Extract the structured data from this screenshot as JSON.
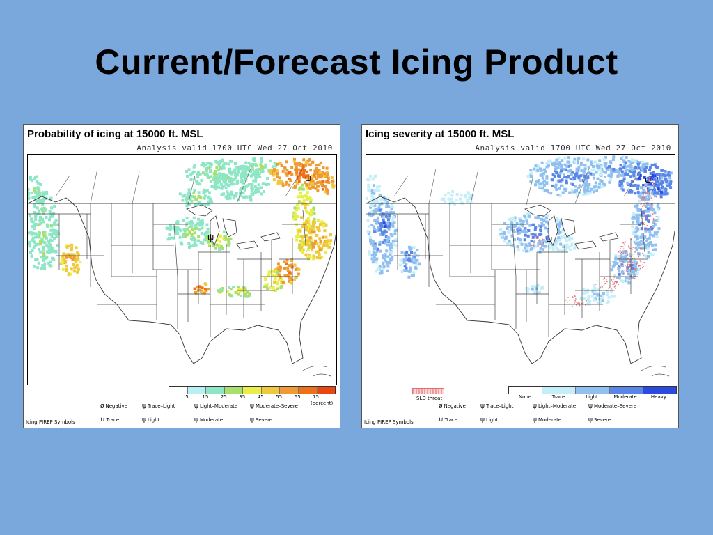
{
  "slide": {
    "title": "Current/Forecast Icing Product"
  },
  "panels": [
    {
      "title": "Probability of icing at 15000 ft. MSL",
      "valid": "Analysis valid 1700 UTC Wed 27 Oct 2010",
      "legend": {
        "colors": [
          "#ffffff",
          "#b8f0f4",
          "#8de6c6",
          "#a8e06e",
          "#e8f048",
          "#f0c83c",
          "#f09a34",
          "#f07018",
          "#e84810"
        ],
        "ticks": [
          "5",
          "15",
          "25",
          "35",
          "45",
          "55",
          "65",
          "75"
        ],
        "unit": "(percent)"
      }
    },
    {
      "title": "Icing severity at 15000 ft. MSL",
      "valid": "Analysis valid 1700 UTC Wed 27 Oct 2010",
      "sld_label": "SLD threat",
      "legend": {
        "colors": [
          "#ffffff",
          "#c6eef8",
          "#8fc0f0",
          "#5a86e8",
          "#2c4ae0"
        ],
        "labels": [
          "None",
          "Trace",
          "Light",
          "Moderate",
          "Heavy"
        ]
      }
    }
  ],
  "pirep": {
    "heading": "Icing PIREP Symbols",
    "items": [
      {
        "symbol": "ø",
        "label": "Negative"
      },
      {
        "symbol": "ψ",
        "label": "Trace–Light"
      },
      {
        "symbol": "ψ",
        "label": "Light–Moderate"
      },
      {
        "symbol": "ψ",
        "label": "Moderate–Severe"
      },
      {
        "symbol": "∪",
        "label": "Trace"
      },
      {
        "symbol": "ψ",
        "label": "Light"
      },
      {
        "symbol": "ψ",
        "label": "Moderate"
      },
      {
        "symbol": "ψ",
        "label": "Severe"
      }
    ]
  },
  "map_style": {
    "boundary_color": "#333333",
    "prob_colors": [
      "#8de6c6",
      "#a8e06e",
      "#e8f048",
      "#f0c83c",
      "#f09a34",
      "#f07018"
    ],
    "sev_colors": [
      "#c6eef8",
      "#8fc0f0",
      "#5a86e8",
      "#2c4ae0"
    ],
    "sld_color": "#e8707a"
  }
}
